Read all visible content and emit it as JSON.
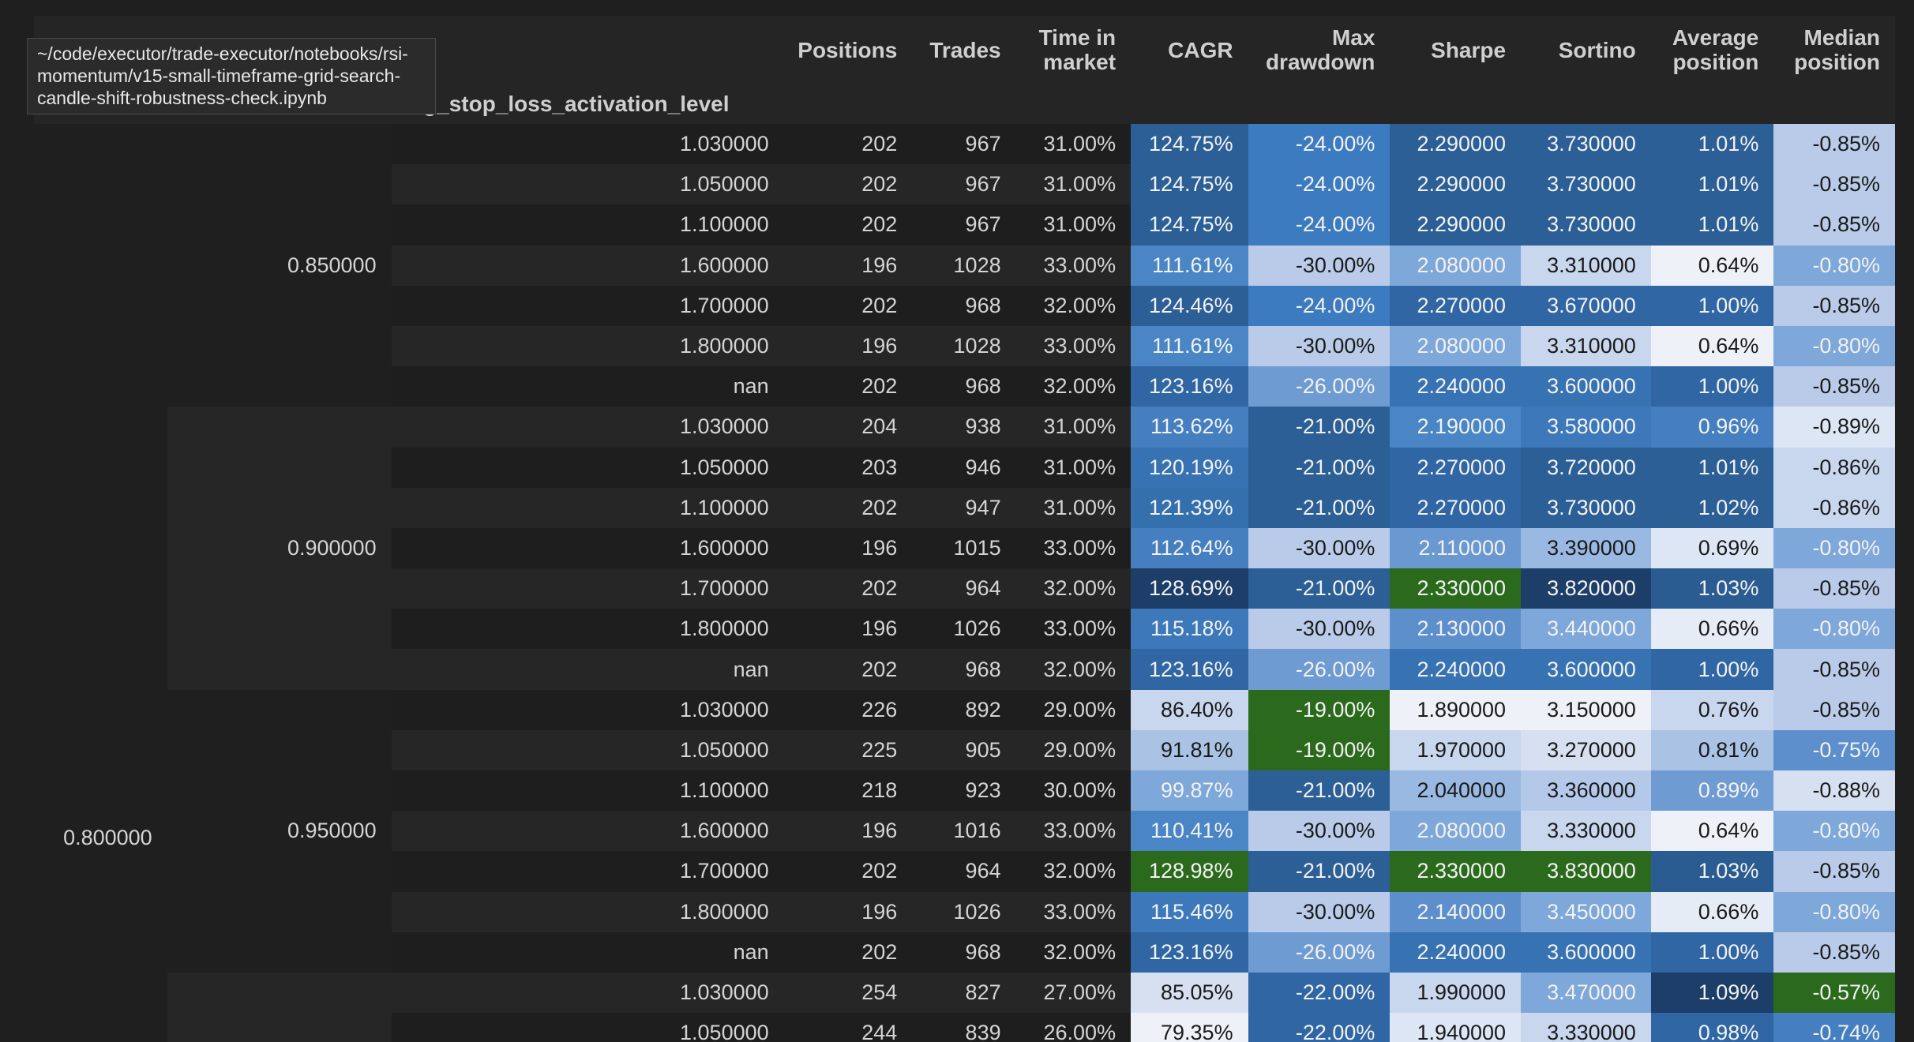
{
  "tooltip": "~/code/executor/trade-executor/notebooks/rsi-momentum/v15-small-timeframe-grid-search-candle-shift-robustness-check.ipynb",
  "headers": {
    "level_names": [
      "",
      "",
      "iling_stop_loss_activation_level"
    ],
    "columns": [
      "Positions",
      "Trades",
      "Time in market",
      "CAGR",
      "Max drawdown",
      "Sharpe",
      "Sortino",
      "Average position",
      "Median position"
    ]
  },
  "index": {
    "level1": "0.800000",
    "level2": [
      "0.850000",
      "0.900000",
      "0.950000"
    ]
  },
  "rows": [
    {
      "lvl3": "1.030000",
      "positions": "202",
      "trades": "967",
      "time": "31.00%",
      "cagr": "124.75%",
      "dd": "-24.00%",
      "sharpe": "2.290000",
      "sortino": "3.730000",
      "avg": "1.01%",
      "median": "-0.85%"
    },
    {
      "lvl3": "1.050000",
      "positions": "202",
      "trades": "967",
      "time": "31.00%",
      "cagr": "124.75%",
      "dd": "-24.00%",
      "sharpe": "2.290000",
      "sortino": "3.730000",
      "avg": "1.01%",
      "median": "-0.85%"
    },
    {
      "lvl3": "1.100000",
      "positions": "202",
      "trades": "967",
      "time": "31.00%",
      "cagr": "124.75%",
      "dd": "-24.00%",
      "sharpe": "2.290000",
      "sortino": "3.730000",
      "avg": "1.01%",
      "median": "-0.85%"
    },
    {
      "lvl3": "1.600000",
      "positions": "196",
      "trades": "1028",
      "time": "33.00%",
      "cagr": "111.61%",
      "dd": "-30.00%",
      "sharpe": "2.080000",
      "sortino": "3.310000",
      "avg": "0.64%",
      "median": "-0.80%"
    },
    {
      "lvl3": "1.700000",
      "positions": "202",
      "trades": "968",
      "time": "32.00%",
      "cagr": "124.46%",
      "dd": "-24.00%",
      "sharpe": "2.270000",
      "sortino": "3.670000",
      "avg": "1.00%",
      "median": "-0.85%"
    },
    {
      "lvl3": "1.800000",
      "positions": "196",
      "trades": "1028",
      "time": "33.00%",
      "cagr": "111.61%",
      "dd": "-30.00%",
      "sharpe": "2.080000",
      "sortino": "3.310000",
      "avg": "0.64%",
      "median": "-0.80%"
    },
    {
      "lvl3": "nan",
      "positions": "202",
      "trades": "968",
      "time": "32.00%",
      "cagr": "123.16%",
      "dd": "-26.00%",
      "sharpe": "2.240000",
      "sortino": "3.600000",
      "avg": "1.00%",
      "median": "-0.85%"
    },
    {
      "lvl3": "1.030000",
      "positions": "204",
      "trades": "938",
      "time": "31.00%",
      "cagr": "113.62%",
      "dd": "-21.00%",
      "sharpe": "2.190000",
      "sortino": "3.580000",
      "avg": "0.96%",
      "median": "-0.89%"
    },
    {
      "lvl3": "1.050000",
      "positions": "203",
      "trades": "946",
      "time": "31.00%",
      "cagr": "120.19%",
      "dd": "-21.00%",
      "sharpe": "2.270000",
      "sortino": "3.720000",
      "avg": "1.01%",
      "median": "-0.86%"
    },
    {
      "lvl3": "1.100000",
      "positions": "202",
      "trades": "947",
      "time": "31.00%",
      "cagr": "121.39%",
      "dd": "-21.00%",
      "sharpe": "2.270000",
      "sortino": "3.730000",
      "avg": "1.02%",
      "median": "-0.86%"
    },
    {
      "lvl3": "1.600000",
      "positions": "196",
      "trades": "1015",
      "time": "33.00%",
      "cagr": "112.64%",
      "dd": "-30.00%",
      "sharpe": "2.110000",
      "sortino": "3.390000",
      "avg": "0.69%",
      "median": "-0.80%"
    },
    {
      "lvl3": "1.700000",
      "positions": "202",
      "trades": "964",
      "time": "32.00%",
      "cagr": "128.69%",
      "dd": "-21.00%",
      "sharpe": "2.330000",
      "sortino": "3.820000",
      "avg": "1.03%",
      "median": "-0.85%"
    },
    {
      "lvl3": "1.800000",
      "positions": "196",
      "trades": "1026",
      "time": "33.00%",
      "cagr": "115.18%",
      "dd": "-30.00%",
      "sharpe": "2.130000",
      "sortino": "3.440000",
      "avg": "0.66%",
      "median": "-0.80%"
    },
    {
      "lvl3": "nan",
      "positions": "202",
      "trades": "968",
      "time": "32.00%",
      "cagr": "123.16%",
      "dd": "-26.00%",
      "sharpe": "2.240000",
      "sortino": "3.600000",
      "avg": "1.00%",
      "median": "-0.85%"
    },
    {
      "lvl3": "1.030000",
      "positions": "226",
      "trades": "892",
      "time": "29.00%",
      "cagr": "86.40%",
      "dd": "-19.00%",
      "sharpe": "1.890000",
      "sortino": "3.150000",
      "avg": "0.76%",
      "median": "-0.85%"
    },
    {
      "lvl3": "1.050000",
      "positions": "225",
      "trades": "905",
      "time": "29.00%",
      "cagr": "91.81%",
      "dd": "-19.00%",
      "sharpe": "1.970000",
      "sortino": "3.270000",
      "avg": "0.81%",
      "median": "-0.75%"
    },
    {
      "lvl3": "1.100000",
      "positions": "218",
      "trades": "923",
      "time": "30.00%",
      "cagr": "99.87%",
      "dd": "-21.00%",
      "sharpe": "2.040000",
      "sortino": "3.360000",
      "avg": "0.89%",
      "median": "-0.88%"
    },
    {
      "lvl3": "1.600000",
      "positions": "196",
      "trades": "1016",
      "time": "33.00%",
      "cagr": "110.41%",
      "dd": "-30.00%",
      "sharpe": "2.080000",
      "sortino": "3.330000",
      "avg": "0.64%",
      "median": "-0.80%"
    },
    {
      "lvl3": "1.700000",
      "positions": "202",
      "trades": "964",
      "time": "32.00%",
      "cagr": "128.98%",
      "dd": "-21.00%",
      "sharpe": "2.330000",
      "sortino": "3.830000",
      "avg": "1.03%",
      "median": "-0.85%"
    },
    {
      "lvl3": "1.800000",
      "positions": "196",
      "trades": "1026",
      "time": "33.00%",
      "cagr": "115.46%",
      "dd": "-30.00%",
      "sharpe": "2.140000",
      "sortino": "3.450000",
      "avg": "0.66%",
      "median": "-0.80%"
    },
    {
      "lvl3": "nan",
      "positions": "202",
      "trades": "968",
      "time": "32.00%",
      "cagr": "123.16%",
      "dd": "-26.00%",
      "sharpe": "2.240000",
      "sortino": "3.600000",
      "avg": "1.00%",
      "median": "-0.85%"
    },
    {
      "lvl3": "1.030000",
      "positions": "254",
      "trades": "827",
      "time": "27.00%",
      "cagr": "85.05%",
      "dd": "-22.00%",
      "sharpe": "1.990000",
      "sortino": "3.470000",
      "avg": "1.09%",
      "median": "-0.57%"
    },
    {
      "lvl3": "1.050000",
      "positions": "244",
      "trades": "839",
      "time": "26.00%",
      "cagr": "79.35%",
      "dd": "-22.00%",
      "sharpe": "1.940000",
      "sortino": "3.330000",
      "avg": "0.98%",
      "median": "-0.74%"
    }
  ],
  "cell_colors": {
    "cagr": [
      "#2c5f96",
      "#2c5f96",
      "#2c5f96",
      "#4a86c6",
      "#2c5f96",
      "#4a86c6",
      "#2f66a3",
      "#457fc0",
      "#3772b2",
      "#3470ae",
      "#457fc0",
      "#1d3e68",
      "#3d78ba",
      "#2f66a3",
      "#c8d7ee",
      "#aac3e5",
      "#7ea7da",
      "#4a86c6",
      "#2b6a1c",
      "#3d78ba",
      "#2f66a3",
      "#d6e0f1",
      "#eef1f8"
    ],
    "dd": [
      "#3d7bc0",
      "#3d7bc0",
      "#3d7bc0",
      "#b9cbe8",
      "#3d7bc0",
      "#b9cbe8",
      "#6f9bd3",
      "#2c5f96",
      "#2c5f96",
      "#2c5f96",
      "#b9cbe8",
      "#2c5f96",
      "#b9cbe8",
      "#6f9bd3",
      "#2b6a1c",
      "#2b6a1c",
      "#2c5f96",
      "#b9cbe8",
      "#2c5f96",
      "#b9cbe8",
      "#6f9bd3",
      "#2f66a3",
      "#2f66a3"
    ],
    "sharpe": [
      "#2c5f96",
      "#2c5f96",
      "#2c5f96",
      "#7ea7da",
      "#2f66a3",
      "#7ea7da",
      "#3772b2",
      "#4a86c6",
      "#2f66a3",
      "#2f66a3",
      "#6a98d0",
      "#2b6a1c",
      "#5d8fcc",
      "#3772b2",
      "#eef1f8",
      "#c8d7ee",
      "#9ab9e2",
      "#7ea7da",
      "#2b6a1c",
      "#5d8fcc",
      "#3772b2",
      "#c8d7ee",
      "#dde6f4"
    ],
    "sortino": [
      "#2c5f96",
      "#2c5f96",
      "#2c5f96",
      "#c8d7ee",
      "#2f66a3",
      "#c8d7ee",
      "#3772b2",
      "#3d78ba",
      "#2c5f96",
      "#2c5f96",
      "#9ab9e2",
      "#1d3e68",
      "#7ea7da",
      "#3772b2",
      "#eef1f8",
      "#d6e0f1",
      "#b4c9e9",
      "#c8d7ee",
      "#2b6a1c",
      "#7ea7da",
      "#3772b2",
      "#7ea7da",
      "#c8d7ee"
    ],
    "avg": [
      "#2c5f96",
      "#2c5f96",
      "#2c5f96",
      "#eef1f8",
      "#2f66a3",
      "#eef1f8",
      "#2f66a3",
      "#457fc0",
      "#2c5f96",
      "#2c5f96",
      "#dde6f4",
      "#2a5b91",
      "#e6ecf6",
      "#2f66a3",
      "#c8d7ee",
      "#aac3e5",
      "#6f9bd3",
      "#eef1f8",
      "#2a5b91",
      "#e6ecf6",
      "#2f66a3",
      "#1d3e68",
      "#2f66a3"
    ],
    "median": [
      "#b9cbe8",
      "#b9cbe8",
      "#b9cbe8",
      "#7ea7da",
      "#b9cbe8",
      "#7ea7da",
      "#b9cbe8",
      "#dde6f4",
      "#c8d7ee",
      "#c8d7ee",
      "#7ea7da",
      "#b9cbe8",
      "#7ea7da",
      "#b9cbe8",
      "#b9cbe8",
      "#5d8fcc",
      "#d6e0f1",
      "#7ea7da",
      "#b9cbe8",
      "#7ea7da",
      "#b9cbe8",
      "#2b6a1c",
      "#457fc0"
    ]
  }
}
